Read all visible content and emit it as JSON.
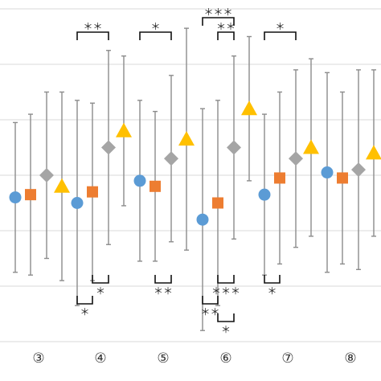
{
  "chart_data": {
    "type": "scatter",
    "title": "",
    "xlabel": "",
    "ylabel": "",
    "categories": [
      "③",
      "④",
      "⑤",
      "⑥",
      "⑦",
      "⑧"
    ],
    "grid": true,
    "ylim": [
      0,
      6
    ],
    "series": [
      {
        "marker": "circle",
        "color": "#5b9bd5",
        "values": [
          2.6,
          2.5,
          2.9,
          2.2,
          2.65,
          3.05
        ],
        "err_low": [
          1.35,
          1.85,
          1.45,
          2.0,
          1.45,
          1.8
        ],
        "err_high": [
          1.35,
          1.85,
          1.45,
          2.0,
          1.45,
          1.8
        ]
      },
      {
        "marker": "square",
        "color": "#ed7d31",
        "values": [
          2.65,
          2.7,
          2.8,
          2.5,
          2.95,
          2.95
        ],
        "err_low": [
          1.45,
          1.6,
          1.35,
          1.85,
          1.55,
          1.55
        ],
        "err_high": [
          1.45,
          1.6,
          1.35,
          1.85,
          1.55,
          1.55
        ]
      },
      {
        "marker": "diamond",
        "color": "#a5a5a5",
        "values": [
          3.0,
          3.5,
          3.3,
          3.5,
          3.3,
          3.1
        ],
        "err_low": [
          1.5,
          1.75,
          1.5,
          1.65,
          1.6,
          1.8
        ],
        "err_high": [
          1.5,
          1.75,
          1.5,
          1.65,
          1.6,
          1.8
        ]
      },
      {
        "marker": "triangle",
        "color": "#ffc000",
        "values": [
          2.8,
          3.8,
          3.65,
          4.2,
          3.5,
          3.4
        ],
        "err_low": [
          1.7,
          1.35,
          2.0,
          1.3,
          1.6,
          1.5
        ],
        "err_high": [
          1.7,
          1.35,
          2.0,
          1.3,
          1.6,
          1.5
        ]
      }
    ],
    "significance": [
      {
        "category": "④",
        "pair": [
          0,
          2
        ],
        "label": "＊＊",
        "position": "top"
      },
      {
        "category": "④",
        "pair": [
          1,
          2
        ],
        "label": "＊",
        "position": "bottom"
      },
      {
        "category": "④",
        "pair": [
          0,
          1
        ],
        "label": "＊",
        "position": "bottom"
      },
      {
        "category": "⑤",
        "pair": [
          0,
          2
        ],
        "label": "＊",
        "position": "top"
      },
      {
        "category": "⑤",
        "pair": [
          1,
          2
        ],
        "label": "＊＊",
        "position": "bottom"
      },
      {
        "category": "⑥",
        "pair": [
          1,
          2
        ],
        "label": "＊＊",
        "position": "top"
      },
      {
        "category": "⑥",
        "pair": [
          0,
          2
        ],
        "label": "＊＊＊",
        "position": "top"
      },
      {
        "category": "⑥",
        "pair": [
          1,
          2
        ],
        "label": "＊＊＊",
        "position": "bottom"
      },
      {
        "category": "⑥",
        "pair": [
          0,
          1
        ],
        "label": "＊＊",
        "position": "bottom"
      },
      {
        "category": "⑥",
        "pair": [
          1,
          2
        ],
        "label": "＊",
        "position": "bottom"
      },
      {
        "category": "⑦",
        "pair": [
          0,
          2
        ],
        "label": "＊",
        "position": "top"
      },
      {
        "category": "⑦",
        "pair": [
          0,
          1
        ],
        "label": "＊",
        "position": "bottom"
      }
    ]
  }
}
